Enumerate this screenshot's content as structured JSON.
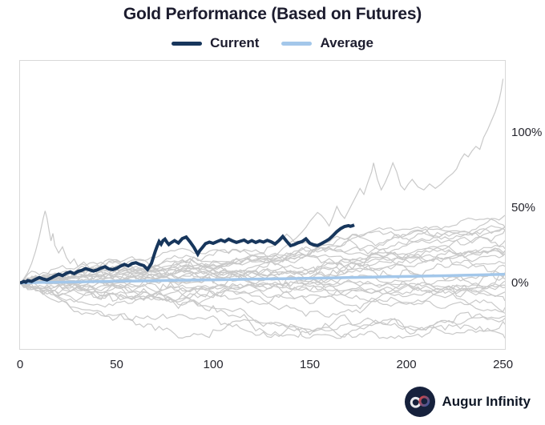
{
  "header": {
    "title": "Gold Performance (Based on Futures)"
  },
  "legend": {
    "items": [
      {
        "label": "Current",
        "color": "#17365c"
      },
      {
        "label": "Average",
        "color": "#a3c7ea"
      }
    ]
  },
  "footer": {
    "brand": "Augur Infinity",
    "logo_bg": "#16213c",
    "logo_left_loop": "#e8eaee",
    "logo_right_loop_start": "#d64545",
    "logo_right_loop_end": "#35589e"
  },
  "chart_data": {
    "type": "line",
    "title": "Gold Performance (Based on Futures)",
    "xlabel": "",
    "ylabel": "",
    "xlim": [
      0,
      251
    ],
    "ylim": [
      -44,
      148
    ],
    "grid": false,
    "legend_position": "top-center",
    "x_ticks": [
      {
        "value": 0,
        "label": "0"
      },
      {
        "value": 50,
        "label": "50"
      },
      {
        "value": 100,
        "label": "100"
      },
      {
        "value": 150,
        "label": "150"
      },
      {
        "value": 200,
        "label": "200"
      },
      {
        "value": 250,
        "label": "250"
      }
    ],
    "y_ticks": [
      {
        "value": 0,
        "label": "0%"
      },
      {
        "value": 50,
        "label": "50%"
      },
      {
        "value": 100,
        "label": "100%"
      }
    ],
    "series": [
      {
        "name": "Current",
        "color": "#17365c",
        "width": 4,
        "points": [
          [
            0,
            0
          ],
          [
            1,
            0.4
          ],
          [
            2,
            1.0
          ],
          [
            3,
            0.5
          ],
          [
            4,
            1.6
          ],
          [
            6,
            1.0
          ],
          [
            8,
            2.4
          ],
          [
            10,
            3.6
          ],
          [
            12,
            2.6
          ],
          [
            14,
            2.0
          ],
          [
            16,
            3.2
          ],
          [
            18,
            4.6
          ],
          [
            20,
            5.8
          ],
          [
            22,
            4.9
          ],
          [
            24,
            6.4
          ],
          [
            26,
            7.3
          ],
          [
            28,
            6.2
          ],
          [
            30,
            7.7
          ],
          [
            32,
            8.4
          ],
          [
            34,
            9.6
          ],
          [
            36,
            8.7
          ],
          [
            38,
            7.9
          ],
          [
            40,
            8.7
          ],
          [
            42,
            9.9
          ],
          [
            44,
            10.8
          ],
          [
            46,
            9.3
          ],
          [
            48,
            8.9
          ],
          [
            50,
            9.7
          ],
          [
            52,
            11.2
          ],
          [
            54,
            12.4
          ],
          [
            56,
            11.3
          ],
          [
            58,
            12.9
          ],
          [
            60,
            13.5
          ],
          [
            62,
            12.3
          ],
          [
            64,
            11.5
          ],
          [
            66,
            9.0
          ],
          [
            68,
            13.0
          ],
          [
            69,
            17.0
          ],
          [
            70,
            21.0
          ],
          [
            71,
            24.5
          ],
          [
            72,
            27.6
          ],
          [
            73,
            25.8
          ],
          [
            74,
            28.2
          ],
          [
            75,
            29.2
          ],
          [
            76,
            27.2
          ],
          [
            77,
            25.6
          ],
          [
            78,
            26.6
          ],
          [
            80,
            28.2
          ],
          [
            82,
            26.6
          ],
          [
            84,
            29.6
          ],
          [
            86,
            30.6
          ],
          [
            88,
            27.4
          ],
          [
            90,
            23.8
          ],
          [
            92,
            19.2
          ],
          [
            93,
            21.5
          ],
          [
            94,
            23.0
          ],
          [
            96,
            26.2
          ],
          [
            98,
            27.2
          ],
          [
            100,
            26.4
          ],
          [
            102,
            27.6
          ],
          [
            104,
            28.6
          ],
          [
            106,
            27.6
          ],
          [
            108,
            29.2
          ],
          [
            110,
            28.0
          ],
          [
            112,
            27.0
          ],
          [
            114,
            27.8
          ],
          [
            116,
            28.6
          ],
          [
            118,
            27.0
          ],
          [
            120,
            28.2
          ],
          [
            122,
            27.0
          ],
          [
            124,
            28.0
          ],
          [
            126,
            27.2
          ],
          [
            128,
            28.4
          ],
          [
            130,
            27.4
          ],
          [
            132,
            26.0
          ],
          [
            134,
            28.2
          ],
          [
            136,
            31.0
          ],
          [
            138,
            27.8
          ],
          [
            140,
            24.8
          ],
          [
            142,
            25.6
          ],
          [
            144,
            26.8
          ],
          [
            146,
            27.6
          ],
          [
            148,
            29.4
          ],
          [
            150,
            26.4
          ],
          [
            152,
            25.4
          ],
          [
            154,
            24.9
          ],
          [
            156,
            26.2
          ],
          [
            158,
            27.6
          ],
          [
            160,
            29.2
          ],
          [
            162,
            31.6
          ],
          [
            164,
            34.2
          ],
          [
            166,
            36.2
          ],
          [
            168,
            37.6
          ],
          [
            170,
            38.2
          ],
          [
            171,
            37.7
          ],
          [
            172,
            38.1
          ],
          [
            173,
            38.6
          ]
        ]
      },
      {
        "name": "Average",
        "color": "#a3c7ea",
        "width": 3.5,
        "points": [
          [
            0,
            0
          ],
          [
            10,
            0.3
          ],
          [
            20,
            0.5
          ],
          [
            30,
            0.7
          ],
          [
            40,
            0.9
          ],
          [
            50,
            1.1
          ],
          [
            60,
            1.3
          ],
          [
            70,
            1.5
          ],
          [
            80,
            1.7
          ],
          [
            90,
            1.9
          ],
          [
            100,
            2.1
          ],
          [
            110,
            2.3
          ],
          [
            120,
            2.5
          ],
          [
            130,
            2.7
          ],
          [
            140,
            2.9
          ],
          [
            150,
            3.1
          ],
          [
            160,
            3.3
          ],
          [
            170,
            3.6
          ],
          [
            180,
            3.8
          ],
          [
            190,
            4.1
          ],
          [
            200,
            4.3
          ],
          [
            210,
            4.6
          ],
          [
            220,
            4.8
          ],
          [
            230,
            5.1
          ],
          [
            240,
            5.4
          ],
          [
            251,
            5.8
          ]
        ]
      }
    ],
    "background_series": {
      "description": "ensemble of historical-year gold futures paths (gray)",
      "color": "#c9c9c9",
      "width": 1.2,
      "count": 27,
      "seed": 1234567,
      "days": 251,
      "sample_step": 2,
      "daily_volatility_pct_min": 1.4,
      "daily_volatility_pct_max": 3.0,
      "drift_min_pct": -0.1,
      "drift_max_pct": 0.125,
      "soft_cap_pct": 50,
      "soft_floor_pct": -37,
      "explicit": [
        {
          "name": "best-year",
          "points": [
            [
              0,
              0
            ],
            [
              5,
              1
            ],
            [
              10,
              2
            ],
            [
              15,
              1
            ],
            [
              20,
              3
            ],
            [
              25,
              4
            ],
            [
              30,
              3
            ],
            [
              35,
              5
            ],
            [
              40,
              4
            ],
            [
              45,
              6
            ],
            [
              50,
              5
            ],
            [
              55,
              7
            ],
            [
              60,
              6
            ],
            [
              65,
              8
            ],
            [
              70,
              9
            ],
            [
              75,
              11
            ],
            [
              80,
              12
            ],
            [
              85,
              14
            ],
            [
              88,
              16
            ],
            [
              90,
              14
            ],
            [
              95,
              11
            ],
            [
              100,
              9
            ],
            [
              105,
              12
            ],
            [
              110,
              14
            ],
            [
              115,
              12
            ],
            [
              120,
              15
            ],
            [
              125,
              17
            ],
            [
              130,
              16
            ],
            [
              133,
              19
            ],
            [
              136,
              23
            ],
            [
              140,
              27
            ],
            [
              143,
              30
            ],
            [
              146,
              34
            ],
            [
              148,
              37
            ],
            [
              150,
              41
            ],
            [
              152,
              44
            ],
            [
              154,
              47
            ],
            [
              156,
              45
            ],
            [
              158,
              42
            ],
            [
              160,
              38
            ],
            [
              162,
              44
            ],
            [
              164,
              51
            ],
            [
              166,
              46
            ],
            [
              168,
              43
            ],
            [
              170,
              48
            ],
            [
              172,
              53
            ],
            [
              174,
              58
            ],
            [
              176,
              63
            ],
            [
              178,
              59
            ],
            [
              180,
              67
            ],
            [
              182,
              74
            ],
            [
              183,
              80
            ],
            [
              185,
              69
            ],
            [
              187,
              62
            ],
            [
              189,
              67
            ],
            [
              191,
              73
            ],
            [
              193,
              80
            ],
            [
              195,
              74
            ],
            [
              197,
              65
            ],
            [
              199,
              62
            ],
            [
              201,
              66
            ],
            [
              203,
              69
            ],
            [
              206,
              64
            ],
            [
              209,
              62
            ],
            [
              212,
              66
            ],
            [
              215,
              63
            ],
            [
              218,
              66
            ],
            [
              221,
              70
            ],
            [
              224,
              73
            ],
            [
              226,
              76
            ],
            [
              228,
              82
            ],
            [
              230,
              86
            ],
            [
              232,
              84
            ],
            [
              234,
              88
            ],
            [
              236,
              91
            ],
            [
              238,
              89
            ],
            [
              240,
              97
            ],
            [
              242,
              102
            ],
            [
              244,
              108
            ],
            [
              246,
              114
            ],
            [
              248,
              122
            ],
            [
              249,
              128
            ],
            [
              250,
              136
            ]
          ]
        },
        {
          "name": "early-spike-year",
          "points": [
            [
              0,
              0
            ],
            [
              2,
              3
            ],
            [
              4,
              7
            ],
            [
              6,
              13
            ],
            [
              8,
              21
            ],
            [
              10,
              31
            ],
            [
              12,
              43
            ],
            [
              13,
              48
            ],
            [
              14,
              43
            ],
            [
              15,
              35
            ],
            [
              16,
              28
            ],
            [
              17,
              33
            ],
            [
              18,
              25
            ],
            [
              20,
              20
            ],
            [
              22,
              24
            ],
            [
              24,
              17
            ],
            [
              26,
              13
            ],
            [
              28,
              16
            ],
            [
              30,
              11
            ],
            [
              33,
              14
            ],
            [
              36,
              10
            ],
            [
              40,
              12
            ],
            [
              44,
              8
            ],
            [
              48,
              11
            ],
            [
              52,
              7
            ],
            [
              56,
              9
            ],
            [
              60,
              11
            ],
            [
              65,
              8
            ],
            [
              70,
              12
            ],
            [
              75,
              9
            ],
            [
              80,
              11
            ],
            [
              85,
              7
            ],
            [
              90,
              10
            ],
            [
              95,
              6
            ],
            [
              100,
              9
            ],
            [
              105,
              5
            ],
            [
              110,
              8
            ],
            [
              116,
              4
            ],
            [
              120,
              7
            ],
            [
              127,
              3
            ],
            [
              130,
              6
            ],
            [
              136,
              2
            ],
            [
              140,
              5
            ],
            [
              147,
              1
            ],
            [
              150,
              4
            ],
            [
              156,
              0
            ],
            [
              160,
              3
            ],
            [
              166,
              -1
            ],
            [
              170,
              2
            ],
            [
              176,
              -2
            ],
            [
              180,
              1
            ],
            [
              186,
              -3
            ],
            [
              190,
              0
            ],
            [
              196,
              -4
            ],
            [
              200,
              -1
            ],
            [
              206,
              -5
            ],
            [
              210,
              -2
            ],
            [
              216,
              -6
            ],
            [
              220,
              -3
            ],
            [
              226,
              -7
            ],
            [
              230,
              -4
            ],
            [
              236,
              -8
            ],
            [
              240,
              -5
            ],
            [
              246,
              -9
            ],
            [
              251,
              -6
            ]
          ]
        }
      ]
    }
  }
}
